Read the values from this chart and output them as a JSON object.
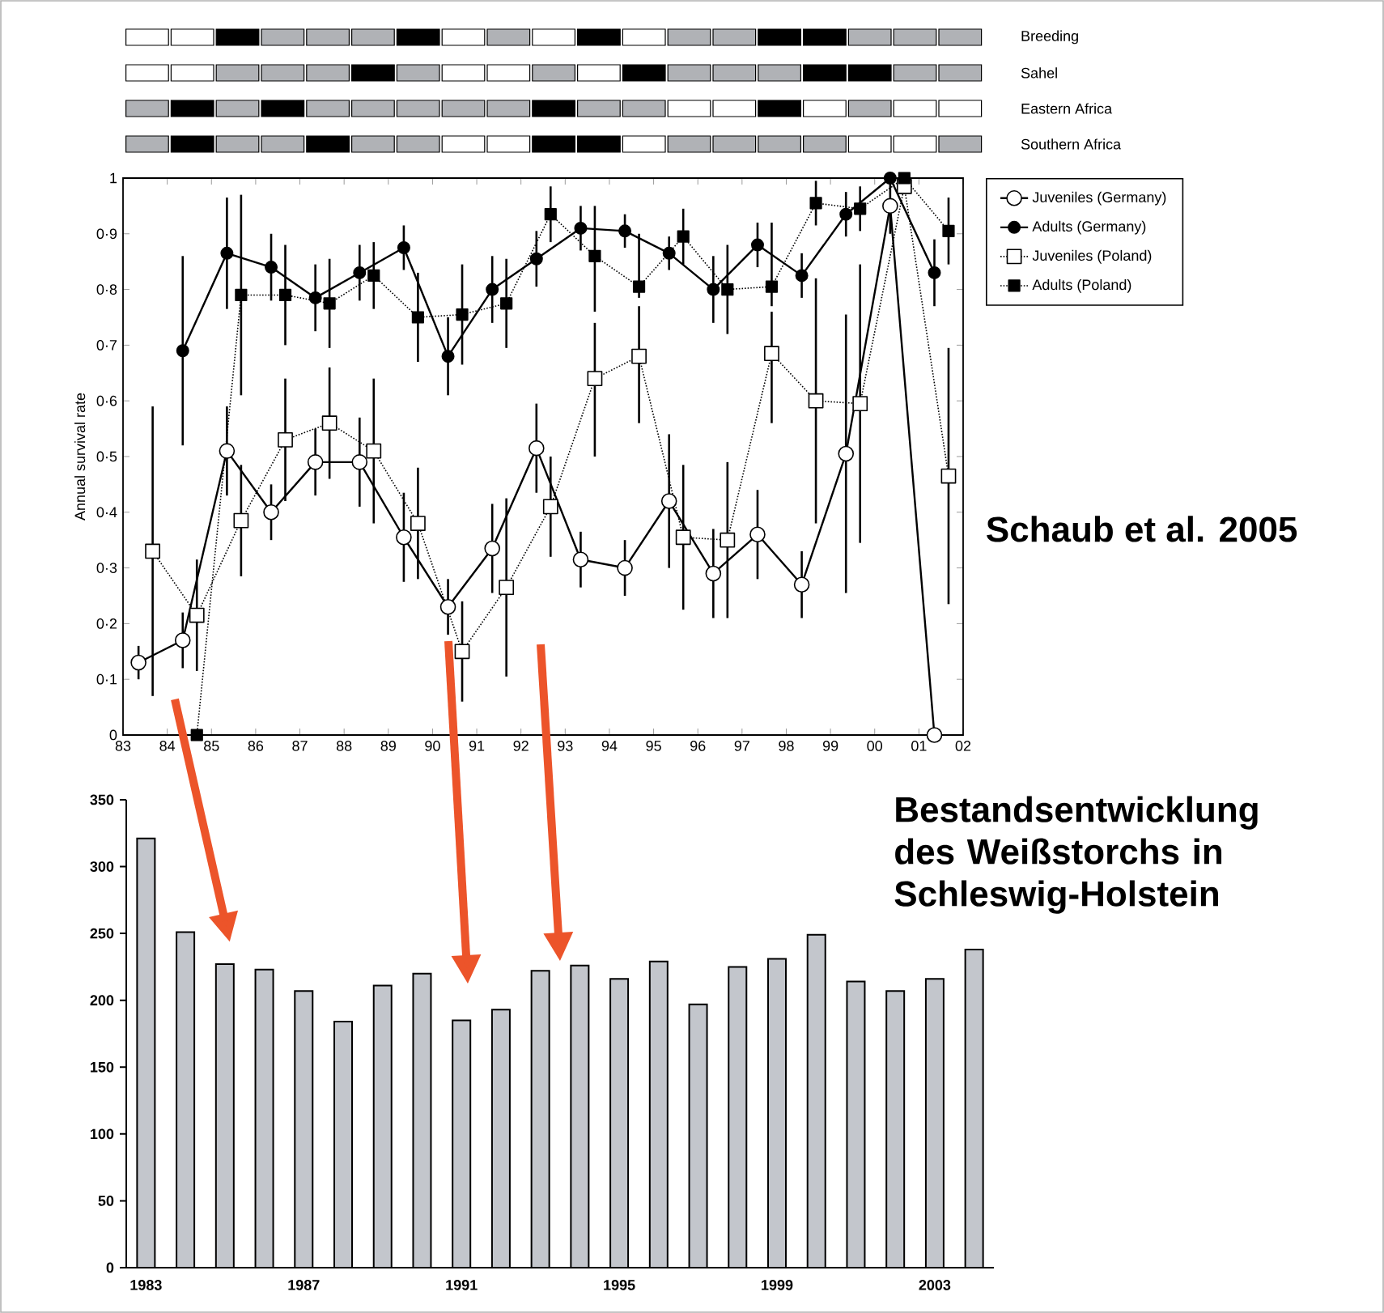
{
  "chart_data": [
    {
      "type": "other",
      "annotations": [
        "Breeding",
        "Sahel",
        "Eastern Africa",
        "Southern Africa"
      ]
    },
    {
      "type": "line",
      "ylabel": "Annual survival rate",
      "annotations": [
        "Schaub et al. 2005"
      ],
      "xlim": [
        1983,
        2002
      ],
      "xticks": [
        {
          "value": 1983,
          "label": "83"
        },
        {
          "value": 1984,
          "label": "84"
        },
        {
          "value": 1985,
          "label": "85"
        },
        {
          "value": 1986,
          "label": "86"
        },
        {
          "value": 1987,
          "label": "87"
        },
        {
          "value": 1988,
          "label": "88"
        },
        {
          "value": 1989,
          "label": "89"
        },
        {
          "value": 1990,
          "label": "90"
        },
        {
          "value": 1991,
          "label": "91"
        },
        {
          "value": 1992,
          "label": "92"
        },
        {
          "value": 1993,
          "label": "93"
        },
        {
          "value": 1994,
          "label": "94"
        },
        {
          "value": 1995,
          "label": "95"
        },
        {
          "value": 1996,
          "label": "96"
        },
        {
          "value": 1997,
          "label": "97"
        },
        {
          "value": 1998,
          "label": "98"
        },
        {
          "value": 1999,
          "label": "99"
        },
        {
          "value": 2000,
          "label": "00"
        },
        {
          "value": 2001,
          "label": "01"
        },
        {
          "value": 2002,
          "label": "02"
        }
      ],
      "ylim": [
        0,
        1
      ],
      "yticks": [
        0,
        {
          "value": 0.1,
          "label": "0·1"
        },
        {
          "value": 0.2,
          "label": "0·2"
        },
        {
          "value": 0.3,
          "label": "0·3"
        },
        {
          "value": 0.4,
          "label": "0·4"
        },
        {
          "value": 0.5,
          "label": "0·5"
        },
        {
          "value": 0.6,
          "label": "0·6"
        },
        {
          "value": 0.7,
          "label": "0·7"
        },
        {
          "value": 0.8,
          "label": "0·8"
        },
        {
          "value": 0.9,
          "label": "0·9"
        },
        1
      ],
      "legend": "top right",
      "series": [
        {
          "name": "Juveniles (Germany)",
          "color": "#ffffff",
          "marker": "circle",
          "line_style": "solid",
          "x": [
            1983.35,
            1984.35,
            1985.35,
            1986.35,
            1987.35,
            1988.35,
            1989.35,
            1990.35,
            1991.35,
            1992.35,
            1993.35,
            1994.35,
            1995.35,
            1996.35,
            1997.35,
            1998.35,
            1999.35,
            2000.35,
            2001.35
          ],
          "values": [
            0.13,
            0.17,
            0.51,
            0.4,
            0.49,
            0.49,
            0.355,
            0.23,
            0.335,
            0.515,
            0.315,
            0.3,
            0.42,
            0.29,
            0.36,
            0.27,
            0.505,
            0.95,
            0.0
          ],
          "errors": [
            0.03,
            0.05,
            0.08,
            0.05,
            0.06,
            0.08,
            0.08,
            0.05,
            0.08,
            0.08,
            0.05,
            0.05,
            0.12,
            0.08,
            0.08,
            0.06,
            0.25,
            0.05,
            null
          ]
        },
        {
          "name": "Adults (Germany)",
          "color": "#000000",
          "marker": "circle",
          "line_style": "solid",
          "x": [
            1984.35,
            1985.35,
            1986.35,
            1987.35,
            1988.35,
            1989.35,
            1990.35,
            1991.35,
            1992.35,
            1993.35,
            1994.35,
            1995.35,
            1996.35,
            1997.35,
            1998.35,
            1999.35,
            2000.35,
            2001.35
          ],
          "values": [
            0.69,
            0.865,
            0.84,
            0.785,
            0.83,
            0.875,
            0.68,
            0.8,
            0.855,
            0.91,
            0.905,
            0.865,
            0.8,
            0.88,
            0.825,
            0.935,
            1.0,
            0.83
          ],
          "errors": [
            0.17,
            0.1,
            0.06,
            0.06,
            0.05,
            0.04,
            0.07,
            0.06,
            0.05,
            0.04,
            0.03,
            0.03,
            0.06,
            0.04,
            0.04,
            0.04,
            null,
            0.06
          ]
        },
        {
          "name": "Juveniles (Poland)",
          "color": "#ffffff",
          "marker": "square",
          "line_style": "dotted",
          "x": [
            1983.67,
            1984.67,
            1985.67,
            1986.67,
            1987.67,
            1988.67,
            1989.67,
            1990.67,
            1991.67,
            1992.67,
            1993.67,
            1994.67,
            1995.67,
            1996.67,
            1997.67,
            1998.67,
            1999.67,
            2000.67,
            2001.67
          ],
          "values": [
            0.33,
            0.215,
            0.385,
            0.53,
            0.56,
            0.51,
            0.38,
            0.15,
            0.265,
            0.41,
            0.64,
            0.68,
            0.355,
            0.35,
            0.685,
            0.6,
            0.595,
            0.985,
            0.465
          ],
          "errors": [
            0.26,
            0.1,
            0.1,
            0.11,
            0.1,
            0.13,
            0.1,
            0.09,
            0.16,
            0.09,
            [
              0.5,
              0.74
            ],
            [
              0.56,
              0.77
            ],
            0.13,
            0.14,
            [
              0.56,
              0.76
            ],
            0.22,
            0.25,
            null,
            0.23
          ]
        },
        {
          "name": "Adults (Poland)",
          "color": "#000000",
          "marker": "square",
          "line_style": "dotted",
          "x": [
            1984.67,
            1985.67,
            1986.67,
            1987.67,
            1988.67,
            1989.67,
            1990.67,
            1991.67,
            1992.67,
            1993.67,
            1994.67,
            1995.67,
            1996.67,
            1997.67,
            1998.67,
            1999.67,
            2000.67,
            2001.67
          ],
          "values": [
            0.0,
            0.79,
            0.79,
            0.775,
            0.825,
            0.75,
            0.755,
            0.775,
            0.935,
            0.86,
            0.805,
            0.895,
            0.8,
            0.805,
            0.955,
            0.945,
            1.0,
            0.905
          ],
          "errors": [
            null,
            0.18,
            0.09,
            0.08,
            0.06,
            0.08,
            0.09,
            0.08,
            0.05,
            [
              0.76,
              0.95
            ],
            [
              0.785,
              0.9
            ],
            0.05,
            0.08,
            [
              0.77,
              0.92
            ],
            0.04,
            0.04,
            null,
            0.06
          ]
        }
      ]
    },
    {
      "type": "bar",
      "title": "Bestandsentwicklung des Weißstorchs in Schleswig-Holstein",
      "categories": [
        "1983",
        null,
        null,
        null,
        "1987",
        null,
        null,
        null,
        "1991",
        null,
        null,
        null,
        "1995",
        null,
        null,
        null,
        "1999",
        null,
        null,
        null,
        "2003",
        null
      ],
      "values": [
        321,
        251,
        227,
        223,
        207,
        184,
        211,
        220,
        185,
        193,
        222,
        226,
        216,
        229,
        197,
        225,
        231,
        249,
        214,
        207,
        216,
        238
      ],
      "color": "#c3c6cc",
      "ylim": [
        0,
        350
      ],
      "yticks": [
        0,
        50,
        100,
        150,
        200,
        250,
        300,
        350
      ]
    }
  ]
}
